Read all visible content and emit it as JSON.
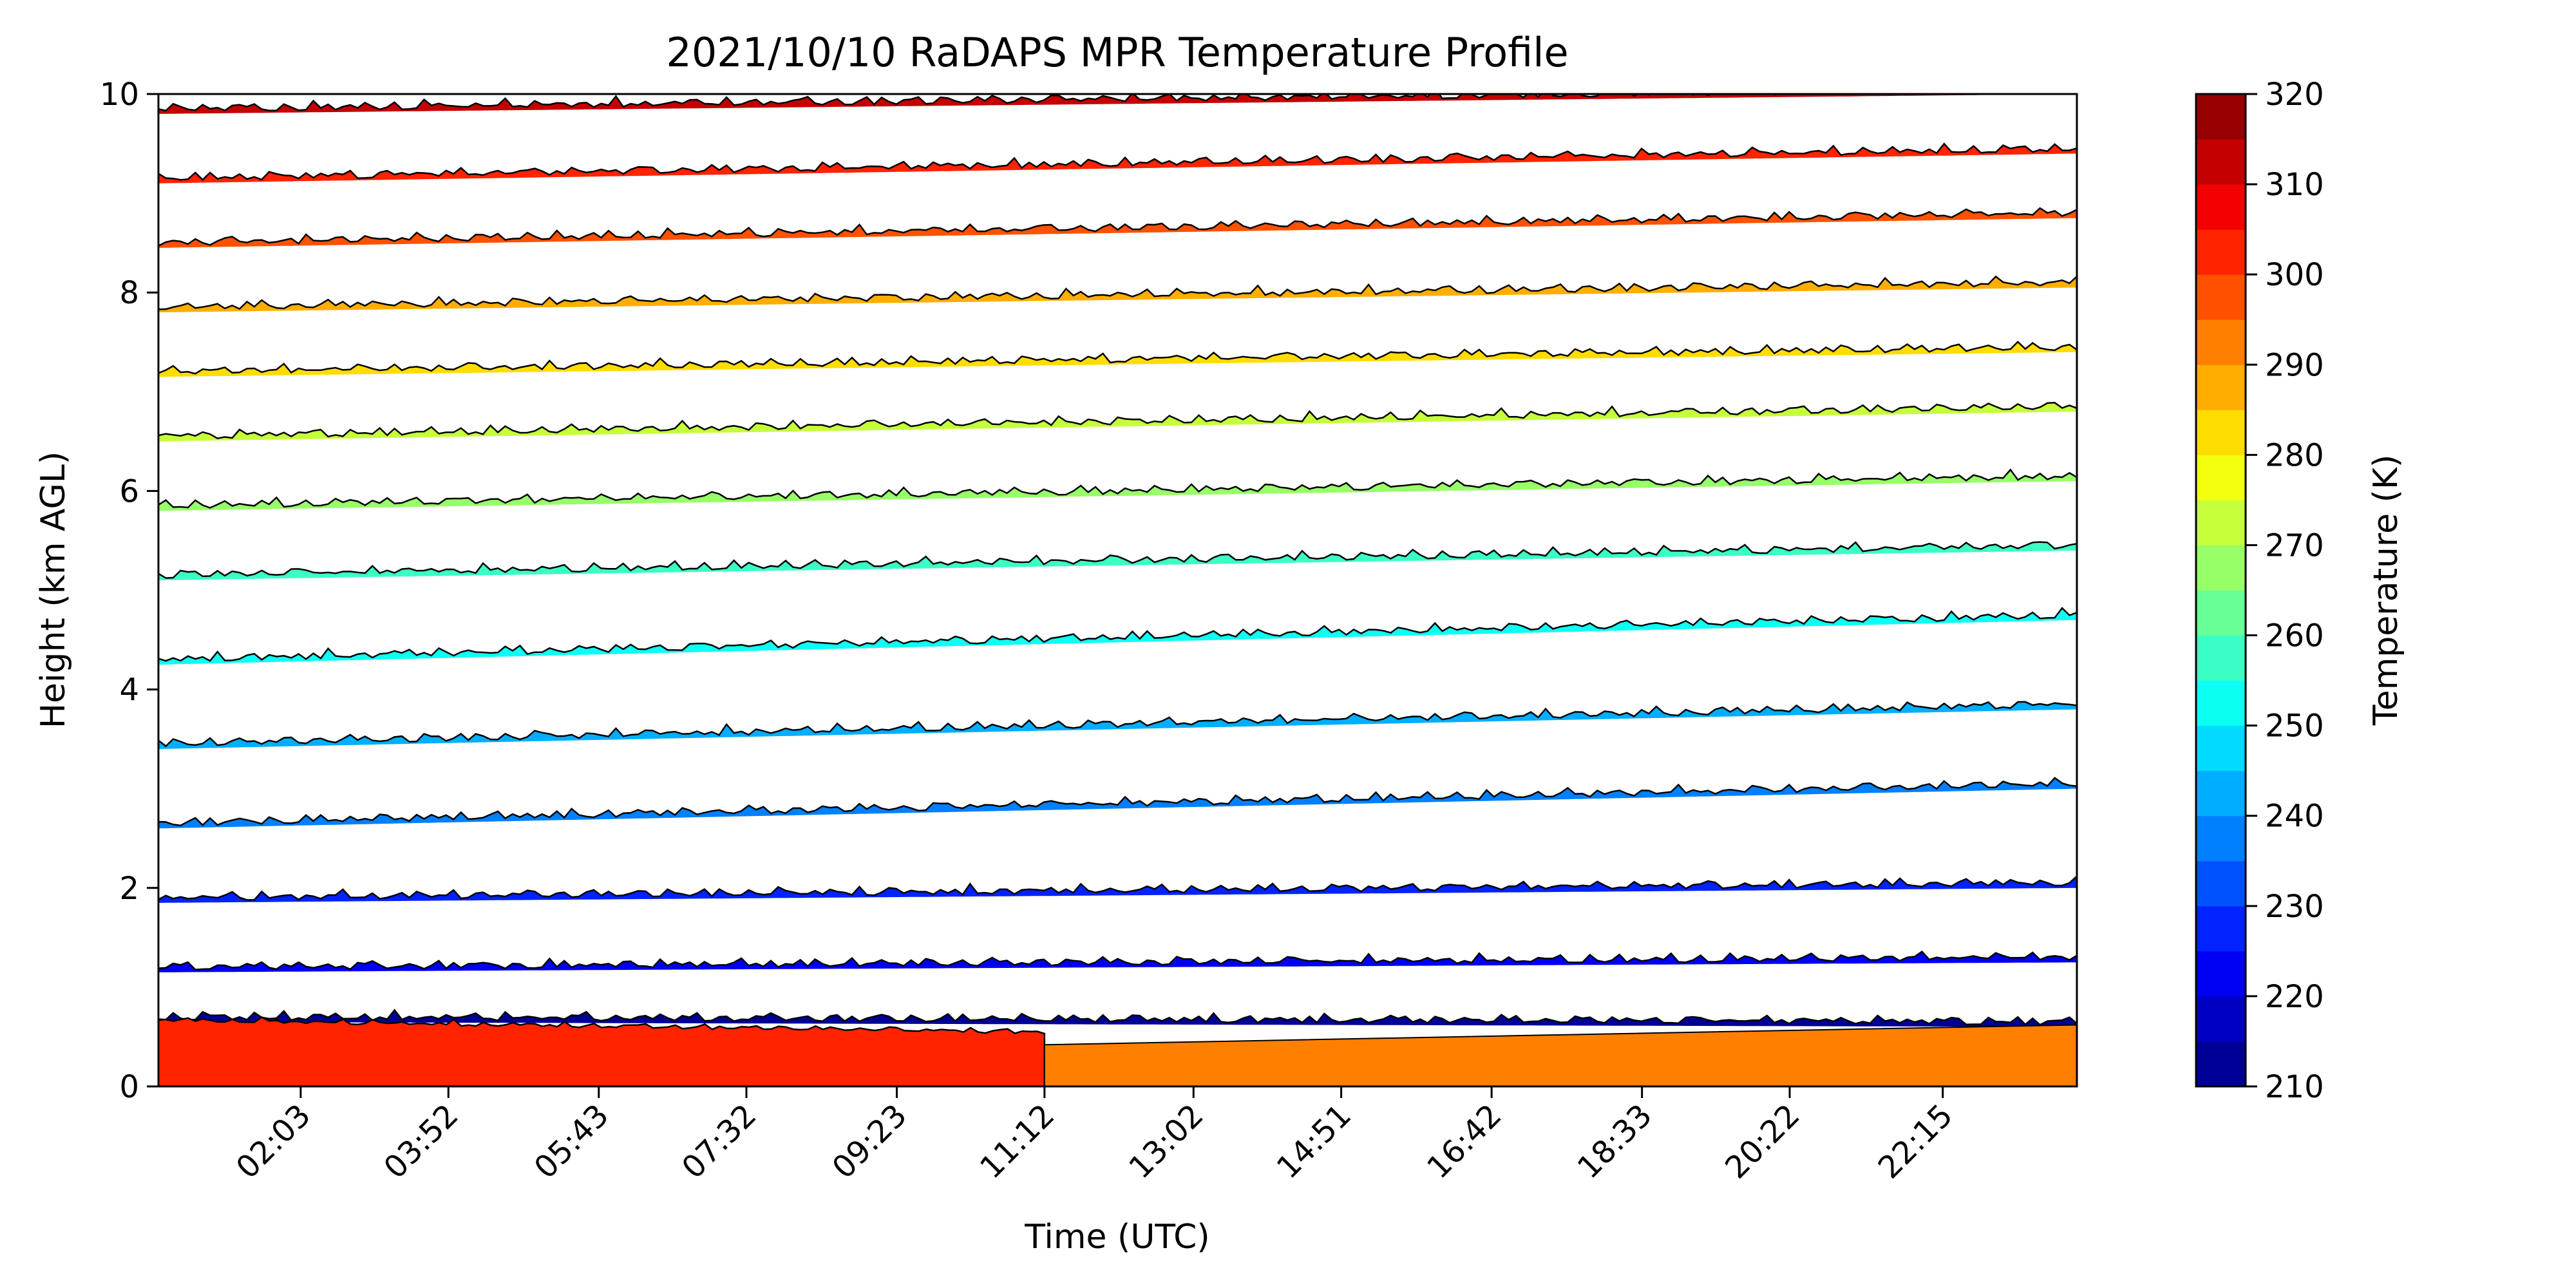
{
  "chart_data": {
    "type": "heatmap",
    "title": "2021/10/10 RaDAPS MPR Temperature Profile",
    "xlabel": "Time (UTC)",
    "ylabel": "Height (km AGL)",
    "x_tick_labels": [
      "02:03",
      "03:52",
      "05:43",
      "07:32",
      "09:23",
      "11:12",
      "13:02",
      "14:51",
      "16:42",
      "18:33",
      "20:22",
      "22:15"
    ],
    "x_ticks_hours": [
      2.05,
      3.867,
      5.717,
      7.533,
      9.383,
      11.2,
      13.033,
      14.85,
      16.7,
      18.55,
      20.367,
      22.25
    ],
    "xlim_hours": [
      0.3,
      23.9
    ],
    "ylim": [
      0,
      10
    ],
    "y_ticks": [
      0,
      2,
      4,
      6,
      8,
      10
    ],
    "y_tick_labels": [
      "0",
      "2",
      "4",
      "6",
      "8",
      "10"
    ],
    "colorbar": {
      "label": "Temperature (K)",
      "range": [
        210,
        320
      ],
      "step": 5,
      "tick_values": [
        210,
        220,
        230,
        240,
        250,
        260,
        270,
        280,
        290,
        300,
        310,
        320
      ],
      "tick_labels": [
        "210",
        "220",
        "230",
        "240",
        "250",
        "260",
        "270",
        "280",
        "290",
        "300",
        "310",
        "320"
      ],
      "colormap": "jet"
    },
    "isotherm_heights_km": [
      {
        "level": 1,
        "height_start": 9.8,
        "height_end": 10.0
      },
      {
        "level": 2,
        "height_start": 9.1,
        "height_end": 9.4
      },
      {
        "level": 3,
        "height_start": 8.45,
        "height_end": 8.75
      },
      {
        "level": 4,
        "height_start": 7.8,
        "height_end": 8.05
      },
      {
        "level": 5,
        "height_start": 7.15,
        "height_end": 7.4
      },
      {
        "level": 6,
        "height_start": 6.5,
        "height_end": 6.8
      },
      {
        "level": 7,
        "height_start": 5.8,
        "height_end": 6.1
      },
      {
        "level": 8,
        "height_start": 5.1,
        "height_end": 5.4
      },
      {
        "level": 9,
        "height_start": 4.25,
        "height_end": 4.7
      },
      {
        "level": 10,
        "height_start": 3.4,
        "height_end": 3.8
      },
      {
        "level": 11,
        "height_start": 2.6,
        "height_end": 3.0
      },
      {
        "level": 12,
        "height_start": 1.85,
        "height_end": 2.0
      },
      {
        "level": 13,
        "height_start": 1.15,
        "height_end": 1.25
      },
      {
        "level": 14,
        "height_start": 0.65,
        "height_end": 0.6
      }
    ]
  }
}
